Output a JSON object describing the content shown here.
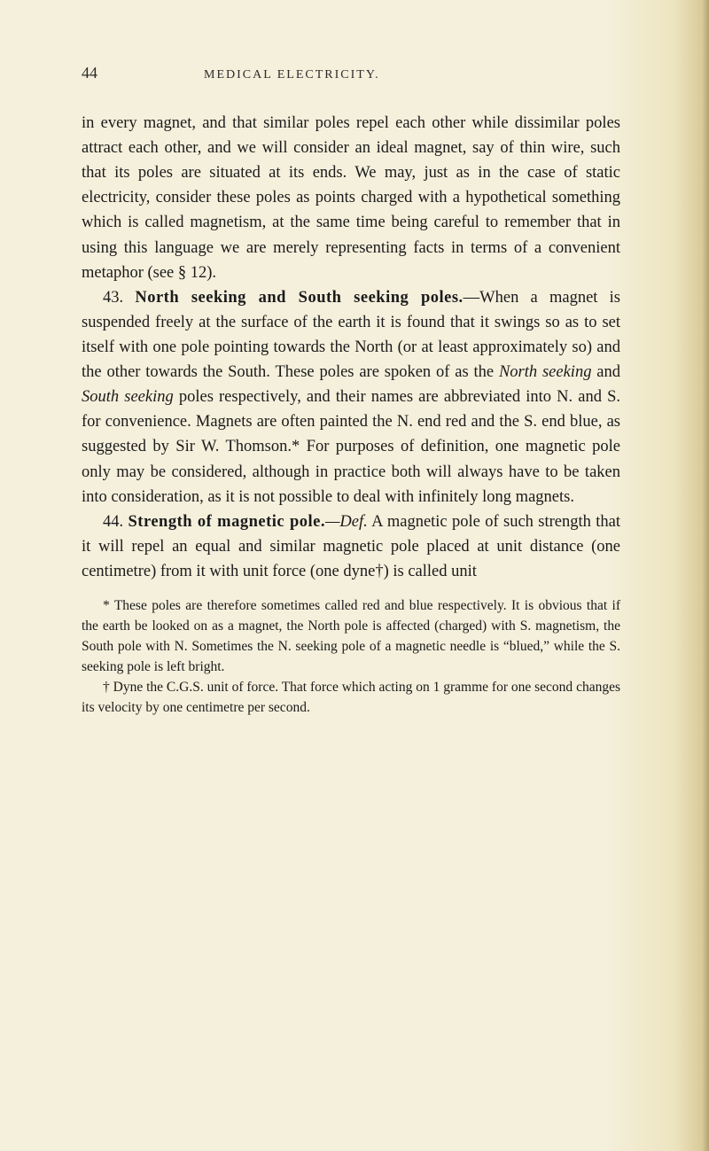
{
  "page": {
    "number": "44",
    "running_head": "MEDICAL ELECTRICITY.",
    "background_color": "#f5f0dc",
    "text_color": "#1a1a1a",
    "body_fontsize": 18.5,
    "footnote_fontsize": 15.5,
    "line_height": 1.52
  },
  "paragraphs": {
    "p1": "in every magnet, and that similar poles repel each other while dissimilar poles attract each other, and we will consider an ideal magnet, say of thin wire, such that its poles are situated at its ends. We may, just as in the case of static electricity, consider these poles as points charged with a hypothetical something which is called magnetism, at the same time being careful to remember that in using this language we are merely representing facts in terms of a convenient metaphor (see § 12).",
    "s43_num": "43. ",
    "s43_title": "North seeking and South seeking poles.",
    "s43_body_a": "—When a magnet is suspended freely at the surface of the earth it is found that it swings so as to set itself with one pole pointing towards the North (or at least approximately so) and the other towards the South. These poles are spoken of as the ",
    "s43_italic1": "North seeking",
    "s43_body_b": " and ",
    "s43_italic2": "South seeking",
    "s43_body_c": " poles respectively, and their names are abbreviated into N. and S. for convenience. Magnets are often painted the N. end red and the S. end blue, as suggested by Sir W. Thomson.* For purposes of definition, one magnetic pole only may be considered, although in practice both will always have to be taken into consideration, as it is not possible to deal with infinitely long magnets.",
    "s44_num": "44. ",
    "s44_title": "Strength of magnetic pole.",
    "s44_def": "—Def.",
    "s44_body": " A magnetic pole of such strength that it will repel an equal and similar magnetic pole placed at unit distance (one centimetre) from it with unit force (one dyne†) is called unit"
  },
  "footnotes": {
    "fn1_a": "* These poles are therefore sometimes called red and blue respectively. It is obvious that if the earth be looked on as a magnet, the North pole is affected (charged) with S. magnetism, the South pole with N. Sometimes the N. seeking pole of a magnetic needle is “blued,” while the S. seeking pole is left bright.",
    "fn2_a": "† Dyne the C.G.S. unit of force. That force which acting on 1 gramme for one second changes its velocity by one centimetre per second."
  }
}
